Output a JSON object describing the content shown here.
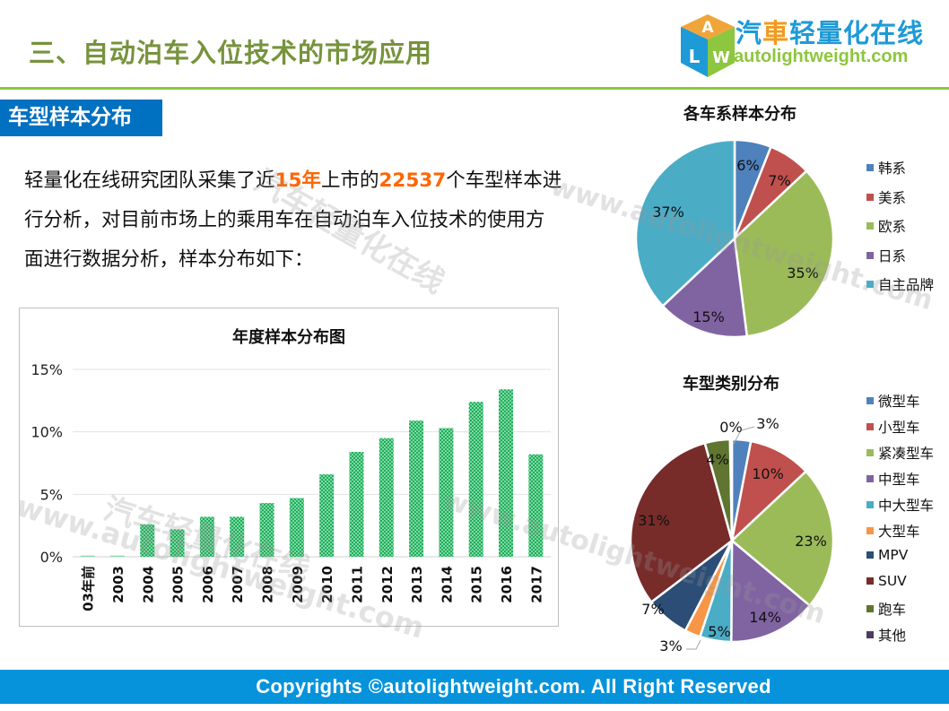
{
  "header": {
    "title": "三、自动泊车入位技术的市场应用",
    "logo": {
      "cn_part1": "汽",
      "cn_part2": "車",
      "cn_part3": "轻量化在线",
      "en": "autolightweight.com",
      "cube_letters": [
        "A",
        "L",
        "W"
      ]
    }
  },
  "section": {
    "tag": "车型样本分布",
    "intro": {
      "t1": "轻量化在线研究团队采集了近",
      "h1": "15年",
      "t2": "上市的",
      "h2": "22537",
      "t3": "个车型样本进行分析，对目前市场上的乘用车在自动泊车入位技术的使用方面进行数据分析，样本分布如下："
    }
  },
  "footer": {
    "text": "Copyrights ©autolightweight.com. All Right Reserved"
  },
  "watermarks": {
    "url": "www.autolightweight.com",
    "cn": "汽车轻量化在线"
  },
  "colors": {
    "title_green": "#77933c",
    "line_green": "#8dc63f",
    "tag_blue": "#0070c0",
    "footer_blue": "#0693dc",
    "highlight_orange": "#ff6600",
    "bar_green": "#2ebd6b"
  },
  "chart_data": [
    {
      "type": "bar",
      "title": "年度样本分布图",
      "categories": [
        "03年前",
        "2003",
        "2004",
        "2005",
        "2006",
        "2007",
        "2008",
        "2009",
        "2010",
        "2011",
        "2012",
        "2013",
        "2014",
        "2015",
        "2016",
        "2017"
      ],
      "values": [
        0.1,
        0.1,
        2.6,
        2.2,
        3.2,
        3.2,
        4.3,
        4.7,
        6.6,
        8.4,
        9.5,
        10.9,
        10.3,
        12.4,
        13.4,
        8.2
      ],
      "yticks": [
        "0%",
        "5%",
        "10%",
        "15%"
      ],
      "ylim": [
        0,
        15
      ],
      "xlabel": "",
      "ylabel": "",
      "grid": true,
      "legend": "none",
      "unit": "%"
    },
    {
      "type": "pie",
      "title": "各车系样本分布",
      "labels": [
        "韩系",
        "美系",
        "欧系",
        "日系",
        "自主品牌"
      ],
      "values": [
        6,
        7,
        35,
        15,
        37
      ],
      "value_labels": [
        "6%",
        "7%",
        "35%",
        "15%",
        "37%"
      ],
      "colors": [
        "#4f81bd",
        "#c0504d",
        "#9bbb59",
        "#8064a2",
        "#4bacc6"
      ],
      "legend_position": "right"
    },
    {
      "type": "pie",
      "title": "车型类别分布",
      "labels": [
        "微型车",
        "小型车",
        "紧凑型车",
        "中型车",
        "中大型车",
        "大型车",
        "MPV",
        "SUV",
        "跑车",
        "其他"
      ],
      "values": [
        3,
        10,
        23,
        14,
        5,
        2.5,
        7,
        31,
        4,
        0.3
      ],
      "value_labels": [
        "3%",
        "10%",
        "23%",
        "14%",
        "5%",
        "3%",
        "7%",
        "31%",
        "4%",
        "0%"
      ],
      "colors": [
        "#4f81bd",
        "#c0504d",
        "#9bbb59",
        "#8064a2",
        "#4bacc6",
        "#f79646",
        "#2c4d75",
        "#772c2a",
        "#5f7530",
        "#4d3b62"
      ],
      "legend_position": "right"
    }
  ]
}
